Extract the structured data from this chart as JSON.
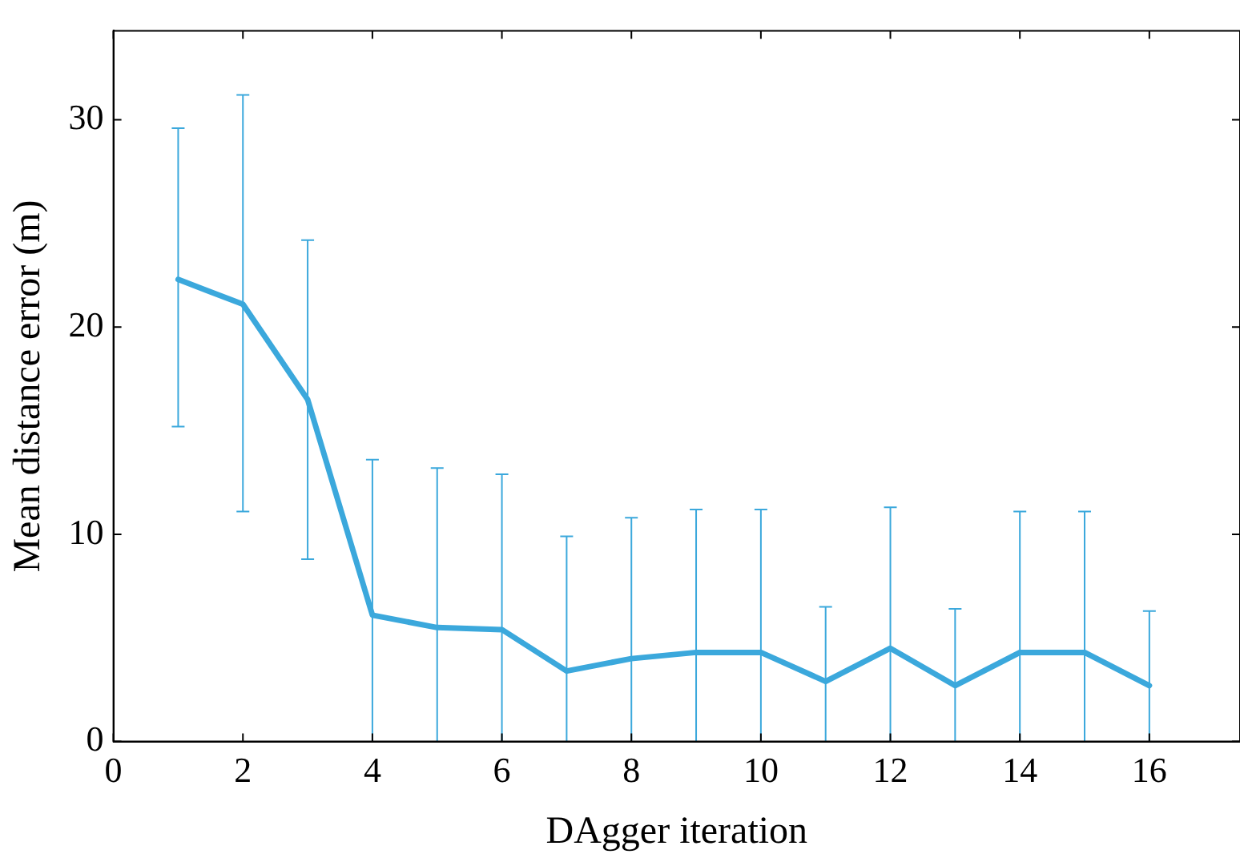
{
  "chart_data": {
    "type": "line",
    "xlabel": "DAgger iteration",
    "ylabel": "Mean distance error (m)",
    "x": [
      1,
      2,
      3,
      4,
      5,
      6,
      7,
      8,
      9,
      10,
      11,
      12,
      13,
      14,
      15,
      16
    ],
    "values": [
      22.3,
      21.1,
      16.5,
      6.1,
      5.5,
      5.4,
      3.4,
      4.0,
      4.3,
      4.3,
      2.9,
      4.5,
      2.7,
      4.3,
      4.3,
      2.7
    ],
    "errors": [
      [
        15.2,
        29.6
      ],
      [
        11.1,
        31.2
      ],
      [
        8.8,
        24.2
      ],
      [
        0,
        13.6
      ],
      [
        0,
        13.2
      ],
      [
        0,
        12.9
      ],
      [
        0,
        9.9
      ],
      [
        0,
        10.8
      ],
      [
        0,
        11.2
      ],
      [
        0,
        11.2
      ],
      [
        0,
        6.5
      ],
      [
        0,
        11.3
      ],
      [
        0,
        6.4
      ],
      [
        0,
        11.1
      ],
      [
        0,
        11.1
      ],
      [
        0,
        6.3
      ]
    ],
    "color": "#3ba8dc",
    "xlim": [
      0,
      17.4
    ],
    "ylim": [
      0,
      34.3
    ],
    "xticks": [
      0,
      2,
      4,
      6,
      8,
      10,
      12,
      14,
      16
    ],
    "yticks": [
      0,
      10,
      20,
      30
    ],
    "grid": false,
    "legend": false,
    "marker": "none",
    "line_style": "solid"
  }
}
